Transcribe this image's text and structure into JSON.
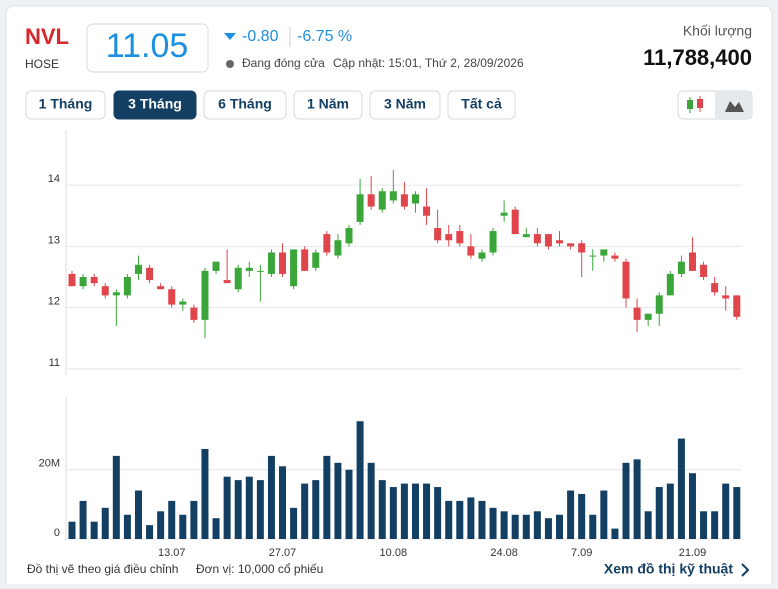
{
  "header": {
    "ticker": "NVL",
    "exchange": "HOSE",
    "price": "11.05",
    "change": "-0.80",
    "change_pct": "-6.75 %",
    "status": "Đang đóng cửa",
    "updated": "Cập nhật: 15:01, Thứ 2, 28/09/2026",
    "volume_label": "Khối lượng",
    "volume": "11,788,400"
  },
  "tabs": [
    "1 Tháng",
    "3 Tháng",
    "6 Tháng",
    "1 Năm",
    "3 Năm",
    "Tất cả"
  ],
  "footer": {
    "note": "Đồ thị vẽ theo giá điều chỉnh",
    "unit": "Đơn vị: 10,000 cổ phiếu",
    "link": "Xem đồ thị kỹ thuật"
  },
  "chart_data": [
    {
      "type": "candlestick",
      "up_color": "#3aa63a",
      "down_color": "#e0454b",
      "grid": true,
      "ylim": [
        10.9,
        14.9
      ],
      "yticks": [
        11,
        12,
        13,
        14
      ],
      "open": [
        12.55,
        12.35,
        12.5,
        12.35,
        12.2,
        12.2,
        12.55,
        12.65,
        12.35,
        12.3,
        12.05,
        12.0,
        11.8,
        12.6,
        12.45,
        12.3,
        12.6,
        12.6,
        12.55,
        12.9,
        12.35,
        12.95,
        12.65,
        13.2,
        12.85,
        13.05,
        13.4,
        13.85,
        13.6,
        13.75,
        13.85,
        13.7,
        13.65,
        13.3,
        13.2,
        13.25,
        13.0,
        12.8,
        12.9,
        13.5,
        13.6,
        13.15,
        13.2,
        13.2,
        13.1,
        13.05,
        13.05,
        12.85,
        12.85,
        12.85,
        12.75,
        12.0,
        11.8,
        11.9,
        12.2,
        12.55,
        12.9,
        12.7,
        12.4,
        12.2,
        12.2
      ],
      "high": [
        12.6,
        12.55,
        12.55,
        12.4,
        12.3,
        12.55,
        12.85,
        12.7,
        12.4,
        12.35,
        12.15,
        12.05,
        12.65,
        12.75,
        12.95,
        12.7,
        12.75,
        12.7,
        12.95,
        13.05,
        12.95,
        13.0,
        12.95,
        13.25,
        13.2,
        13.35,
        14.1,
        14.15,
        13.95,
        14.25,
        14.05,
        13.9,
        13.95,
        13.6,
        13.35,
        13.35,
        13.2,
        12.95,
        13.3,
        13.75,
        13.65,
        13.3,
        13.3,
        13.2,
        13.25,
        13.05,
        13.1,
        12.95,
        12.95,
        12.9,
        12.8,
        12.15,
        11.9,
        12.25,
        12.6,
        12.85,
        13.15,
        12.75,
        12.5,
        12.35,
        12.2
      ],
      "low": [
        12.35,
        12.3,
        12.35,
        12.15,
        11.7,
        12.15,
        12.45,
        12.4,
        12.3,
        12.0,
        11.95,
        11.75,
        11.5,
        12.55,
        12.4,
        12.25,
        12.5,
        12.1,
        12.5,
        12.5,
        12.3,
        12.6,
        12.6,
        12.85,
        12.8,
        13.0,
        13.35,
        13.6,
        13.55,
        13.7,
        13.6,
        13.55,
        13.35,
        13.05,
        13.0,
        13.0,
        12.8,
        12.75,
        12.85,
        13.4,
        13.2,
        13.15,
        13.0,
        12.95,
        13.0,
        12.95,
        12.5,
        12.6,
        12.75,
        12.75,
        12.0,
        11.6,
        11.7,
        11.7,
        12.2,
        12.5,
        12.6,
        12.45,
        12.2,
        11.95,
        11.8
      ],
      "close": [
        12.35,
        12.5,
        12.4,
        12.2,
        12.25,
        12.5,
        12.7,
        12.45,
        12.3,
        12.05,
        12.1,
        11.8,
        12.6,
        12.75,
        12.4,
        12.65,
        12.65,
        12.6,
        12.9,
        12.55,
        12.95,
        12.6,
        12.9,
        12.9,
        13.1,
        13.3,
        13.85,
        13.65,
        13.9,
        13.9,
        13.65,
        13.85,
        13.5,
        13.1,
        13.1,
        13.05,
        12.85,
        12.9,
        13.25,
        13.55,
        13.2,
        13.2,
        13.05,
        13.0,
        13.05,
        13.0,
        12.9,
        12.85,
        12.95,
        12.8,
        12.15,
        11.8,
        11.9,
        12.2,
        12.55,
        12.75,
        12.6,
        12.5,
        12.25,
        12.15,
        11.85
      ]
    },
    {
      "type": "bar",
      "color": "#133f63",
      "grid": true,
      "categories": [
        null,
        null,
        null,
        null,
        null,
        null,
        null,
        null,
        null,
        "13.07",
        null,
        null,
        null,
        null,
        null,
        null,
        null,
        null,
        null,
        "27.07",
        null,
        null,
        null,
        null,
        null,
        null,
        null,
        null,
        null,
        "10.08",
        null,
        null,
        null,
        null,
        null,
        null,
        null,
        null,
        null,
        "24.08",
        null,
        null,
        null,
        null,
        null,
        null,
        "7.09",
        null,
        null,
        null,
        null,
        null,
        null,
        null,
        null,
        null,
        "21.09",
        null,
        null,
        null,
        null
      ],
      "values": [
        5000000,
        11000000,
        5000000,
        9000000,
        24000000,
        7000000,
        14000000,
        4000000,
        8000000,
        11000000,
        7000000,
        11000000,
        26000000,
        6000000,
        18000000,
        17000000,
        18000000,
        17000000,
        24000000,
        21000000,
        9000000,
        16000000,
        17000000,
        24000000,
        22000000,
        20000000,
        34000000,
        22000000,
        17000000,
        15000000,
        16000000,
        16000000,
        16000000,
        15000000,
        11000000,
        11000000,
        12000000,
        11000000,
        9000000,
        8000000,
        7000000,
        7000000,
        8000000,
        6000000,
        7000000,
        14000000,
        13000000,
        7000000,
        14000000,
        3000000,
        22000000,
        23000000,
        8000000,
        15000000,
        16000000,
        29000000,
        19000000,
        8000000,
        8000000,
        16000000,
        15000000
      ],
      "ylim": [
        0,
        41000000
      ],
      "yticks": [
        0,
        {
          "value": 20000000,
          "label": "20M"
        }
      ]
    }
  ]
}
